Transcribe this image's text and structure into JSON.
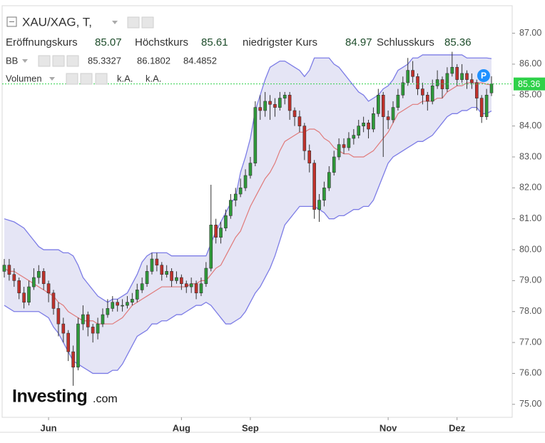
{
  "chart_data": {
    "type": "candlestick",
    "title": "XAU/XAG, T,",
    "categories": [
      null,
      null,
      null,
      null,
      null,
      null,
      null,
      null,
      null,
      "Jun",
      null,
      null,
      null,
      null,
      null,
      null,
      null,
      null,
      null,
      null,
      null,
      null,
      null,
      null,
      null,
      null,
      null,
      null,
      null,
      null,
      null,
      null,
      null,
      null,
      null,
      null,
      "Aug",
      null,
      null,
      null,
      null,
      null,
      null,
      null,
      null,
      null,
      null,
      null,
      null,
      null,
      "Sep",
      null,
      null,
      null,
      null,
      null,
      null,
      null,
      null,
      null,
      null,
      null,
      null,
      null,
      null,
      null,
      null,
      null,
      null,
      null,
      null,
      null,
      null,
      null,
      null,
      null,
      null,
      null,
      "Nov",
      null,
      null,
      null,
      null,
      null,
      null,
      null,
      null,
      null,
      null,
      null,
      null,
      null,
      "Dez",
      null,
      null,
      null,
      null,
      null,
      null,
      null
    ],
    "open": [
      79.3,
      79.5,
      79.2,
      79.0,
      78.6,
      78.3,
      78.8,
      79.1,
      79.3,
      78.9,
      78.6,
      78.1,
      77.6,
      77.3,
      76.7,
      76.2,
      77.6,
      77.9,
      77.5,
      77.3,
      77.6,
      77.9,
      78.1,
      78.3,
      78.2,
      78.2,
      78.3,
      78.4,
      78.7,
      78.9,
      79.3,
      79.7,
      79.5,
      79.2,
      79.3,
      79.0,
      79.1,
      78.9,
      78.8,
      78.9,
      78.6,
      78.9,
      79.4,
      80.8,
      80.4,
      80.7,
      81.1,
      81.6,
      81.8,
      82.0,
      82.4,
      82.8,
      84.6,
      84.5,
      84.8,
      84.7,
      84.6,
      84.9,
      85.0,
      84.5,
      84.3,
      84.0,
      83.2,
      82.8,
      81.3,
      81.6,
      82.0,
      82.5,
      83.0,
      83.4,
      83.3,
      83.6,
      83.7,
      84.0,
      84.1,
      83.9,
      84.4,
      85.0,
      84.3,
      84.2,
      84.6,
      85.0,
      85.4,
      85.8,
      85.6,
      85.2,
      85.0,
      84.8,
      85.3,
      85.5,
      85.2,
      85.7,
      85.9,
      85.5,
      85.7,
      85.5,
      85.4,
      84.9,
      84.3,
      85.07
    ],
    "high": [
      79.7,
      79.7,
      79.4,
      79.1,
      78.8,
      79.0,
      79.4,
      79.5,
      79.4,
      79.0,
      78.7,
      78.3,
      77.8,
      77.4,
      76.9,
      77.8,
      78.2,
      78.0,
      77.6,
      77.8,
      78.1,
      78.4,
      78.5,
      78.4,
      78.4,
      78.5,
      78.6,
      78.9,
      79.1,
      79.5,
      79.9,
      79.9,
      79.6,
      79.5,
      79.4,
      79.3,
      79.2,
      79.0,
      79.1,
      79.0,
      79.1,
      79.6,
      82.1,
      81.0,
      80.9,
      81.3,
      81.8,
      82.0,
      82.3,
      82.6,
      83.0,
      84.8,
      85.0,
      85.1,
      85.0,
      84.9,
      85.1,
      85.1,
      85.1,
      84.6,
      84.5,
      84.1,
      83.4,
      82.9,
      81.8,
      82.2,
      82.7,
      83.2,
      83.6,
      83.6,
      83.8,
      83.9,
      84.2,
      84.3,
      84.2,
      84.6,
      85.2,
      85.1,
      84.5,
      84.8,
      85.2,
      85.6,
      86.2,
      86.1,
      85.7,
      85.4,
      85.1,
      85.5,
      85.8,
      85.6,
      85.9,
      86.4,
      86.0,
      86.0,
      85.8,
      85.7,
      85.5,
      85.0,
      85.2,
      85.61
    ],
    "low": [
      79.1,
      79.0,
      78.8,
      78.4,
      78.1,
      78.2,
      78.7,
      78.9,
      78.7,
      78.3,
      77.9,
      77.2,
      77.0,
      76.4,
      75.6,
      76.1,
      77.4,
      77.2,
      77.0,
      77.1,
      77.5,
      77.8,
      78.0,
      78.0,
      78.0,
      78.1,
      78.2,
      78.3,
      78.6,
      78.8,
      79.2,
      79.3,
      79.0,
      79.1,
      78.8,
      78.9,
      78.7,
      78.6,
      78.6,
      78.4,
      78.5,
      78.8,
      79.3,
      80.2,
      80.2,
      80.6,
      81.0,
      81.4,
      81.7,
      81.9,
      82.3,
      82.7,
      84.2,
      84.3,
      84.2,
      84.3,
      84.5,
      84.7,
      84.2,
      84.0,
      83.8,
      82.9,
      82.5,
      81.0,
      80.9,
      81.4,
      81.9,
      82.4,
      82.9,
      83.1,
      83.2,
      83.4,
      83.6,
      83.8,
      83.6,
      83.8,
      84.3,
      83.0,
      83.9,
      84.1,
      84.5,
      84.9,
      85.3,
      85.4,
      85.0,
      84.7,
      84.5,
      84.7,
      85.2,
      84.9,
      85.1,
      85.6,
      85.3,
      85.4,
      85.2,
      85.2,
      84.5,
      84.1,
      84.2,
      84.97
    ],
    "close": [
      79.5,
      79.2,
      79.0,
      78.6,
      78.3,
      78.8,
      79.1,
      79.3,
      78.9,
      78.6,
      78.1,
      77.6,
      77.3,
      76.7,
      76.2,
      77.6,
      77.9,
      77.5,
      77.3,
      77.6,
      77.9,
      78.1,
      78.3,
      78.2,
      78.2,
      78.3,
      78.4,
      78.7,
      78.9,
      79.3,
      79.7,
      79.5,
      79.2,
      79.3,
      79.0,
      79.1,
      78.9,
      78.8,
      78.9,
      78.6,
      78.9,
      79.4,
      80.8,
      80.4,
      80.7,
      81.1,
      81.6,
      81.8,
      82.0,
      82.4,
      82.8,
      84.6,
      84.5,
      84.8,
      84.7,
      84.6,
      84.9,
      85.0,
      84.5,
      84.3,
      84.0,
      83.2,
      82.8,
      81.3,
      81.6,
      82.0,
      82.5,
      83.0,
      83.4,
      83.3,
      83.6,
      83.7,
      84.0,
      84.1,
      83.9,
      84.4,
      85.0,
      84.3,
      84.2,
      84.6,
      85.0,
      85.4,
      85.8,
      85.6,
      85.2,
      85.0,
      84.8,
      85.3,
      85.5,
      85.2,
      85.7,
      85.9,
      85.5,
      85.7,
      85.5,
      85.4,
      84.9,
      84.3,
      85.0,
      85.36
    ],
    "up_color": "#2f9a3a",
    "down_color": "#c0312b",
    "ohlc_labels": [
      "Eröffnungskurs",
      "Höchstkurs",
      "niedrigster Kurs",
      "Schlusskurs"
    ],
    "bands": {
      "name": "BB",
      "color": "#7c7ce6",
      "middle_color": "#e07a7a",
      "fill": "#dcdcf2",
      "value_colors": [
        "#c0312b",
        "#1a1ad0",
        "#1a1ad0"
      ],
      "upper": [
        81.0,
        80.95,
        80.9,
        80.8,
        80.7,
        80.5,
        80.3,
        80.1,
        80.0,
        80.0,
        80.0,
        80.0,
        79.9,
        79.9,
        79.8,
        79.5,
        79.1,
        78.9,
        78.7,
        78.5,
        78.4,
        78.3,
        78.4,
        78.4,
        78.5,
        78.6,
        78.9,
        79.2,
        79.6,
        79.8,
        79.9,
        79.9,
        79.9,
        79.9,
        79.8,
        79.8,
        79.8,
        79.8,
        79.8,
        79.8,
        79.8,
        79.8,
        80.2,
        80.6,
        80.9,
        81.2,
        81.5,
        81.7,
        82.5,
        83.0,
        83.6,
        84.5,
        85.0,
        85.5,
        85.9,
        86.0,
        86.1,
        86.1,
        86.0,
        85.9,
        85.8,
        85.6,
        85.8,
        86.2,
        86.2,
        86.2,
        86.2,
        86.0,
        85.9,
        85.7,
        85.5,
        85.3,
        85.1,
        85.0,
        84.8,
        84.9,
        85.0,
        85.2,
        85.3,
        85.5,
        85.8,
        85.9,
        86.0,
        86.2,
        86.2,
        86.3,
        86.3,
        86.3,
        86.3,
        86.3,
        86.3,
        86.3,
        86.3,
        86.3,
        86.2,
        86.2,
        86.2,
        86.2,
        86.2,
        86.1802
      ],
      "middle": [
        79.4,
        79.3,
        79.3,
        79.2,
        79.1,
        79.0,
        78.9,
        78.8,
        78.7,
        78.6,
        78.5,
        78.3,
        78.2,
        78.0,
        77.9,
        77.8,
        77.7,
        77.7,
        77.7,
        77.6,
        77.6,
        77.6,
        77.6,
        77.7,
        77.8,
        78.0,
        78.2,
        78.3,
        78.4,
        78.5,
        78.6,
        78.7,
        78.8,
        78.8,
        78.8,
        78.8,
        78.8,
        78.8,
        78.9,
        78.9,
        79.0,
        79.0,
        79.2,
        79.4,
        79.5,
        79.8,
        80.1,
        80.4,
        80.6,
        81.0,
        81.4,
        81.7,
        82.0,
        82.3,
        82.5,
        82.8,
        83.2,
        83.5,
        83.6,
        83.7,
        83.8,
        83.8,
        83.9,
        83.9,
        83.8,
        83.6,
        83.5,
        83.3,
        83.2,
        83.1,
        83.1,
        83.0,
        83.0,
        83.0,
        83.1,
        83.2,
        83.4,
        83.6,
        83.8,
        84.1,
        84.4,
        84.5,
        84.6,
        84.7,
        84.7,
        84.8,
        84.8,
        84.8,
        84.9,
        84.9,
        85.1,
        85.2,
        85.3,
        85.3,
        85.4,
        85.4,
        85.4,
        85.4,
        85.35,
        85.3327
      ],
      "lower": [
        78.2,
        78.1,
        78.0,
        78.0,
        78.0,
        78.0,
        78.0,
        78.0,
        77.9,
        77.8,
        77.5,
        77.3,
        77.0,
        76.7,
        76.4,
        76.3,
        76.2,
        76.1,
        76.0,
        76.0,
        76.0,
        76.0,
        76.1,
        76.1,
        76.3,
        76.6,
        76.9,
        77.2,
        77.3,
        77.4,
        77.6,
        77.6,
        77.7,
        77.7,
        77.8,
        77.9,
        77.9,
        78.0,
        78.1,
        78.2,
        78.2,
        78.3,
        78.2,
        78.0,
        77.8,
        77.6,
        77.6,
        77.7,
        77.8,
        78.0,
        78.3,
        78.6,
        78.8,
        79.1,
        79.4,
        79.8,
        80.3,
        80.8,
        81.0,
        81.2,
        81.4,
        81.4,
        81.4,
        81.4,
        81.3,
        81.2,
        81.0,
        81.0,
        81.1,
        81.1,
        81.2,
        81.3,
        81.3,
        81.4,
        81.4,
        81.6,
        82.0,
        82.4,
        82.8,
        83.0,
        83.1,
        83.2,
        83.3,
        83.4,
        83.5,
        83.5,
        83.6,
        83.7,
        83.9,
        84.1,
        84.3,
        84.4,
        84.4,
        84.5,
        84.5,
        84.6,
        84.6,
        84.4,
        84.4,
        84.4852
      ]
    },
    "volume_label": "Volumen",
    "volume_values": [
      "k.A.",
      "k.A."
    ],
    "last_price_color": "#2fd14a",
    "badge": "P",
    "logo": [
      "Investing",
      ".com"
    ],
    "ylim": [
      74.58,
      87.89
    ],
    "yticks": [
      {
        "value": 75,
        "label": "75.00"
      },
      {
        "value": 76,
        "label": "76.00"
      },
      {
        "value": 77,
        "label": "77.00"
      },
      {
        "value": 78,
        "label": "78.00"
      },
      {
        "value": 79,
        "label": "79.00"
      },
      {
        "value": 80,
        "label": "80.00"
      },
      {
        "value": 81,
        "label": "81.00"
      },
      {
        "value": 82,
        "label": "82.00"
      },
      {
        "value": 83,
        "label": "83.00"
      },
      {
        "value": 84,
        "label": "84.00"
      },
      {
        "value": 85,
        "label": "85.00"
      },
      {
        "value": 86,
        "label": "86.00"
      },
      {
        "value": 87,
        "label": "87.00"
      }
    ]
  }
}
